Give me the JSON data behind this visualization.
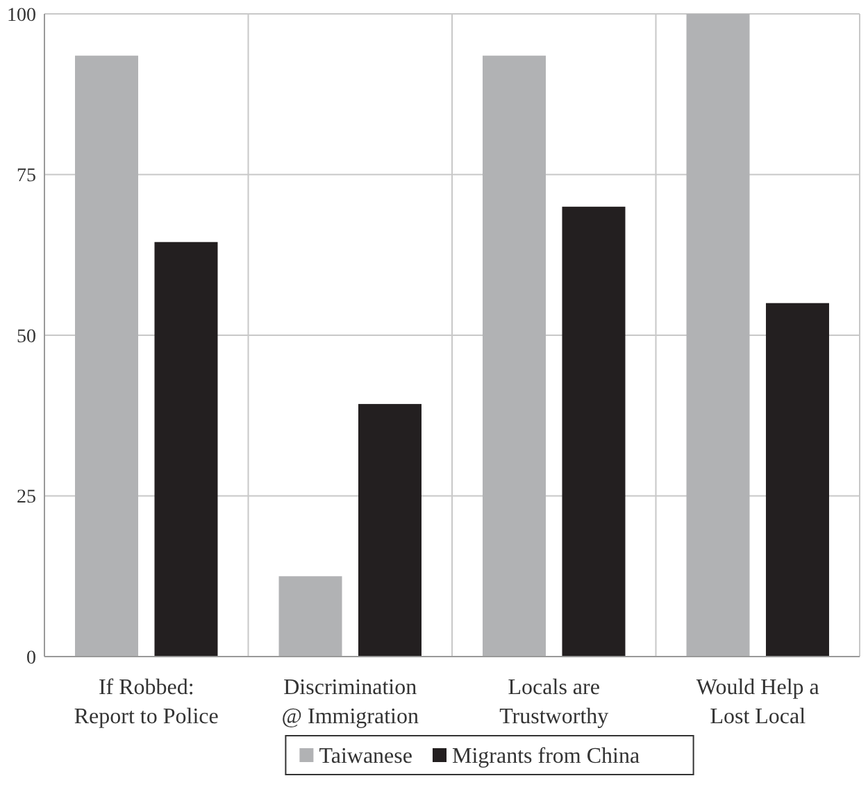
{
  "chart_data": {
    "type": "bar",
    "categories": [
      "If Robbed:\nReport to Police",
      "Discrimination\n@ Immigration",
      "Locals are\nTrustworthy",
      "Would Help a\nLost Local"
    ],
    "series": [
      {
        "name": "Taiwanese",
        "color": "#b1b2b4",
        "values": [
          93.5,
          12.5,
          93.5,
          100
        ]
      },
      {
        "name": "Migrants from China",
        "color": "#231f20",
        "values": [
          64.5,
          39.3,
          70,
          55
        ]
      }
    ],
    "ylim": [
      0,
      100
    ],
    "yticks": [
      0,
      25,
      50,
      75,
      100
    ],
    "grid": true,
    "legend": "bottom"
  }
}
